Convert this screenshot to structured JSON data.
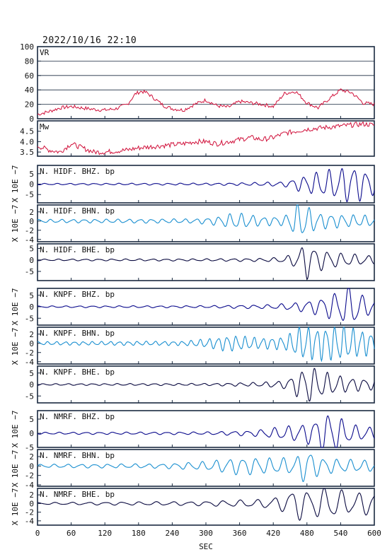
{
  "header": {
    "timestamp": "2022/10/16 22:10"
  },
  "x_axis": {
    "label": "SEC",
    "ticks": [
      "0",
      "60",
      "120",
      "180",
      "240",
      "300",
      "360",
      "420",
      "480",
      "540",
      "600"
    ],
    "min": 0,
    "max": 600
  },
  "scale_label": "X 10E −7",
  "colors": {
    "vr": "#d0103a",
    "bhz": "#0a0a8c",
    "bhn": "#1a8fd0",
    "bhe": "#0a0a40",
    "frame": "#1a2a40"
  },
  "chart_data": [
    {
      "type": "line",
      "id": "vr",
      "label": "VR",
      "ylim": [
        0,
        100
      ],
      "yticks": [
        "0",
        "20",
        "40",
        "60",
        "80",
        "100"
      ],
      "grid": true,
      "x": [
        0,
        20,
        40,
        60,
        80,
        100,
        120,
        140,
        160,
        175,
        185,
        195,
        205,
        215,
        225,
        240,
        260,
        280,
        300,
        320,
        340,
        360,
        380,
        400,
        420,
        440,
        460,
        480,
        500,
        520,
        540,
        560,
        580,
        600
      ],
      "values": [
        6,
        10,
        15,
        17,
        15,
        13,
        12,
        14,
        20,
        35,
        38,
        36,
        30,
        24,
        18,
        14,
        12,
        20,
        26,
        18,
        16,
        24,
        22,
        20,
        17,
        35,
        38,
        22,
        15,
        28,
        40,
        36,
        22,
        20
      ]
    },
    {
      "type": "line",
      "id": "mw",
      "label": "Mw",
      "ylim": [
        3.3,
        5.0
      ],
      "yticks": [
        "3.5",
        "4.0",
        "4.5"
      ],
      "grid": false,
      "x": [
        0,
        20,
        40,
        60,
        80,
        100,
        120,
        140,
        160,
        180,
        200,
        220,
        240,
        260,
        280,
        300,
        320,
        340,
        360,
        380,
        400,
        420,
        440,
        460,
        480,
        500,
        520,
        540,
        560,
        580,
        600
      ],
      "values": [
        3.8,
        3.6,
        3.5,
        3.9,
        3.7,
        3.5,
        3.5,
        3.55,
        3.6,
        3.7,
        3.75,
        3.8,
        3.85,
        3.9,
        4.0,
        4.0,
        3.9,
        4.0,
        4.1,
        4.2,
        4.1,
        4.2,
        4.4,
        4.5,
        4.6,
        4.65,
        4.7,
        4.75,
        4.8,
        4.85,
        4.8
      ]
    },
    {
      "type": "line",
      "id": "hidf-bhz",
      "label": "N. HIDF. BHZ. bp",
      "component": "bhz",
      "ylim": [
        -9,
        9
      ],
      "yticks": [
        "5",
        "0",
        "-5"
      ],
      "envelope": {
        "x": [
          0,
          300,
          380,
          440,
          460,
          500,
          540,
          560,
          580,
          600
        ],
        "values": [
          0.3,
          0.4,
          0.6,
          1.0,
          2.5,
          5.0,
          6.5,
          8.0,
          6.0,
          4.5
        ]
      },
      "period": 22
    },
    {
      "type": "line",
      "id": "hidf-bhn",
      "label": "N. HIDF. BHN. bp",
      "component": "bhn",
      "ylim": [
        -4.5,
        3.5
      ],
      "yticks": [
        "2",
        "0",
        "-2",
        "-4"
      ],
      "envelope": {
        "x": [
          0,
          280,
          320,
          350,
          380,
          400,
          440,
          460,
          470,
          500,
          540,
          600
        ],
        "values": [
          0.3,
          0.4,
          0.8,
          1.5,
          1.2,
          0.8,
          0.9,
          3.0,
          3.3,
          1.5,
          1.2,
          1.0
        ]
      },
      "period": 20
    },
    {
      "type": "line",
      "id": "hidf-bhe",
      "label": "N. HIDF. BHE. bp",
      "component": "bhe",
      "ylim": [
        -9,
        7
      ],
      "yticks": [
        "5",
        "0",
        "-5"
      ],
      "envelope": {
        "x": [
          0,
          300,
          400,
          440,
          460,
          480,
          500,
          540,
          600
        ],
        "values": [
          0.3,
          0.4,
          0.6,
          1.0,
          3.0,
          7.0,
          4.0,
          2.5,
          1.5
        ]
      },
      "period": 24
    },
    {
      "type": "line",
      "id": "knpf-bhz",
      "label": "N. KNPF. BHZ. bp",
      "component": "bhz",
      "ylim": [
        -8,
        8
      ],
      "yticks": [
        "5",
        "0",
        "-5"
      ],
      "envelope": {
        "x": [
          0,
          300,
          420,
          460,
          500,
          540,
          560,
          580,
          600
        ],
        "values": [
          0.3,
          0.4,
          0.8,
          1.5,
          3.0,
          6.0,
          8.0,
          4.0,
          3.0
        ]
      },
      "period": 24
    },
    {
      "type": "line",
      "id": "knpf-bhn",
      "label": "N. KNPF. BHN. bp",
      "component": "bhn",
      "ylim": [
        -4.5,
        3.5
      ],
      "yticks": [
        "2",
        "0",
        "-2",
        "-4"
      ],
      "envelope": {
        "x": [
          0,
          260,
          300,
          340,
          400,
          440,
          470,
          500,
          540,
          600
        ],
        "values": [
          0.3,
          0.4,
          0.8,
          1.5,
          1.0,
          1.2,
          3.2,
          3.0,
          3.3,
          2.0
        ]
      },
      "period": 16
    },
    {
      "type": "line",
      "id": "knpf-bhe",
      "label": "N. KNPF. BHE. bp",
      "component": "bhe",
      "ylim": [
        -8,
        8
      ],
      "yticks": [
        "5",
        "0",
        "-5"
      ],
      "envelope": {
        "x": [
          0,
          300,
          400,
          440,
          460,
          480,
          520,
          560,
          600
        ],
        "values": [
          0.3,
          0.4,
          0.8,
          1.5,
          4.0,
          7.0,
          4.0,
          2.5,
          2.0
        ]
      },
      "period": 22
    },
    {
      "type": "line",
      "id": "nmrf-bhz",
      "label": "N. NMRF. BHZ. bp",
      "component": "bhz",
      "ylim": [
        -5,
        8
      ],
      "yticks": [
        "5",
        "0",
        "-5"
      ],
      "envelope": {
        "x": [
          0,
          300,
          380,
          440,
          480,
          520,
          540,
          560,
          600
        ],
        "values": [
          0.3,
          0.4,
          0.8,
          2.0,
          3.0,
          6.5,
          4.5,
          2.5,
          1.8
        ]
      },
      "period": 24
    },
    {
      "type": "line",
      "id": "nmrf-bhn",
      "label": "N. NMRF. BHN. bp",
      "component": "bhn",
      "ylim": [
        -4.3,
        3.5
      ],
      "yticks": [
        "2",
        "0",
        "-2",
        "-4"
      ],
      "envelope": {
        "x": [
          0,
          220,
          300,
          360,
          420,
          460,
          480,
          500,
          540,
          600
        ],
        "values": [
          0.3,
          0.4,
          0.8,
          1.6,
          1.4,
          1.5,
          3.5,
          1.6,
          1.2,
          1.0
        ]
      },
      "period": 24
    },
    {
      "type": "line",
      "id": "nmrf-bhe",
      "label": "N. NMRF. BHE. bp",
      "component": "bhe",
      "ylim": [
        -5,
        3.5
      ],
      "yticks": [
        "2",
        "0",
        "-2",
        "-4"
      ],
      "envelope": {
        "x": [
          0,
          280,
          400,
          440,
          460,
          480,
          520,
          560,
          600
        ],
        "values": [
          0.2,
          0.4,
          0.8,
          1.6,
          3.5,
          2.5,
          3.2,
          2.0,
          2.5
        ]
      },
      "period": 30
    }
  ]
}
